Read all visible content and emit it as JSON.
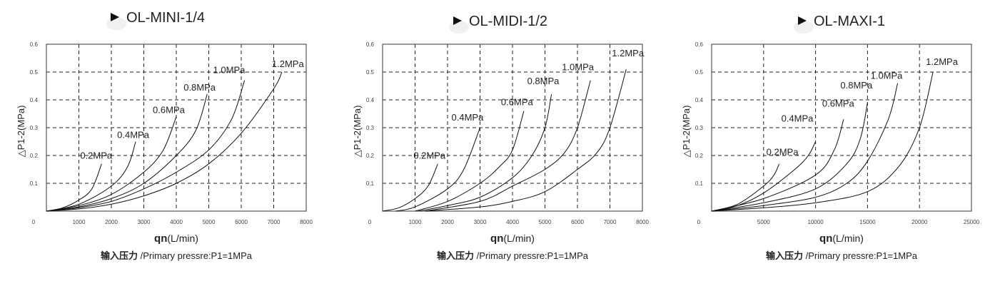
{
  "chart_data": [
    {
      "type": "line",
      "title": "OL-MINI-1/4",
      "xlabel_bold": "qn",
      "xlabel_rest": "(L/min)",
      "ylabel": "△P1-2(MPa)",
      "subtitle_bold": "输入压力",
      "subtitle_rest": " /Primary pressre:P1=1MPa",
      "xlim": [
        0,
        8000
      ],
      "ylim": [
        0,
        0.6
      ],
      "xticks": [
        "0",
        "1000",
        "2000",
        "3000",
        "4000",
        "5000",
        "6000",
        "7000",
        "8000"
      ],
      "yticks": [
        "0.1",
        "0.2",
        "0.3",
        "0.4",
        "0.5",
        "0.6"
      ],
      "grid": true,
      "series": [
        {
          "name": "0.2MPa",
          "points": [
            [
              0,
              0
            ],
            [
              500,
              0.012
            ],
            [
              1000,
              0.04
            ],
            [
              1400,
              0.08
            ],
            [
              1700,
              0.17
            ]
          ]
        },
        {
          "name": "0.4MPa",
          "points": [
            [
              0,
              0
            ],
            [
              1000,
              0.025
            ],
            [
              2000,
              0.09
            ],
            [
              2500,
              0.16
            ],
            [
              2750,
              0.25
            ]
          ]
        },
        {
          "name": "0.6MPa",
          "points": [
            [
              0,
              0
            ],
            [
              1000,
              0.02
            ],
            [
              2000,
              0.06
            ],
            [
              3000,
              0.14
            ],
            [
              3600,
              0.22
            ],
            [
              4000,
              0.34
            ]
          ]
        },
        {
          "name": "0.8MPa",
          "points": [
            [
              0,
              0
            ],
            [
              1000,
              0.015
            ],
            [
              2000,
              0.045
            ],
            [
              3000,
              0.1
            ],
            [
              4000,
              0.2
            ],
            [
              4600,
              0.29
            ],
            [
              4950,
              0.42
            ]
          ]
        },
        {
          "name": "1.0MPa",
          "points": [
            [
              0,
              0
            ],
            [
              1000,
              0.012
            ],
            [
              2000,
              0.035
            ],
            [
              3000,
              0.08
            ],
            [
              4000,
              0.14
            ],
            [
              5000,
              0.22
            ],
            [
              5700,
              0.33
            ],
            [
              6100,
              0.47
            ]
          ]
        },
        {
          "name": "1.2MPa",
          "points": [
            [
              0,
              0
            ],
            [
              1000,
              0.008
            ],
            [
              2000,
              0.025
            ],
            [
              3000,
              0.055
            ],
            [
              4000,
              0.1
            ],
            [
              5000,
              0.17
            ],
            [
              6000,
              0.28
            ],
            [
              7000,
              0.44
            ],
            [
              7250,
              0.5
            ]
          ]
        }
      ]
    },
    {
      "type": "line",
      "title": "OL-MIDI-1/2",
      "xlabel_bold": "qn",
      "xlabel_rest": "(L/min)",
      "ylabel": "△P1-2(MPa)",
      "subtitle_bold": "输入压力",
      "subtitle_rest": " /Primary pressre:P1=1MPa",
      "xlim": [
        0,
        8000
      ],
      "ylim": [
        0,
        0.6
      ],
      "xticks": [
        "0",
        "1000",
        "2000",
        "3000",
        "4000",
        "5000",
        "6000",
        "7000",
        "8000"
      ],
      "yticks": [
        "0.1",
        "0.2",
        "0.3",
        "0.4",
        "0.5",
        "0.6"
      ],
      "grid": true,
      "series": [
        {
          "name": "0.2MPa",
          "points": [
            [
              0,
              0
            ],
            [
              500,
              0.012
            ],
            [
              1000,
              0.045
            ],
            [
              1400,
              0.09
            ],
            [
              1700,
              0.17
            ]
          ]
        },
        {
          "name": "0.4MPa",
          "points": [
            [
              400,
              0
            ],
            [
              1000,
              0.015
            ],
            [
              2000,
              0.08
            ],
            [
              2500,
              0.15
            ],
            [
              3000,
              0.3
            ]
          ]
        },
        {
          "name": "0.6MPa",
          "points": [
            [
              1000,
              0
            ],
            [
              2000,
              0.035
            ],
            [
              3000,
              0.1
            ],
            [
              3600,
              0.16
            ],
            [
              4000,
              0.22
            ],
            [
              4350,
              0.36
            ]
          ]
        },
        {
          "name": "0.8MPa",
          "points": [
            [
              1100,
              0
            ],
            [
              2000,
              0.02
            ],
            [
              3000,
              0.05
            ],
            [
              4000,
              0.12
            ],
            [
              4600,
              0.2
            ],
            [
              5000,
              0.3
            ],
            [
              5200,
              0.42
            ]
          ]
        },
        {
          "name": "1.0MPa",
          "points": [
            [
              1300,
              0
            ],
            [
              3000,
              0.035
            ],
            [
              4000,
              0.09
            ],
            [
              5000,
              0.15
            ],
            [
              5600,
              0.21
            ],
            [
              6000,
              0.3
            ],
            [
              6400,
              0.47
            ]
          ]
        },
        {
          "name": "1.2MPa",
          "points": [
            [
              1300,
              0
            ],
            [
              3000,
              0.015
            ],
            [
              4000,
              0.035
            ],
            [
              5000,
              0.07
            ],
            [
              6000,
              0.15
            ],
            [
              6600,
              0.21
            ],
            [
              7000,
              0.3
            ],
            [
              7500,
              0.51
            ]
          ]
        }
      ]
    },
    {
      "type": "line",
      "title": "OL-MAXI-1",
      "xlabel_bold": "qn",
      "xlabel_rest": "(L/min)",
      "ylabel": "△P1-2(MPa)",
      "subtitle_bold": "输入压力",
      "subtitle_rest": " /Primary pressre:P1=1MPa",
      "xlim": [
        0,
        25000
      ],
      "ylim": [
        0,
        0.6
      ],
      "xticks": [
        "0",
        "5000",
        "10000",
        "15000",
        "20000",
        "25000"
      ],
      "yticks": [
        "0.1",
        "0.2",
        "0.3",
        "0.4",
        "0.5",
        "0.6"
      ],
      "grid": true,
      "series": [
        {
          "name": "0.2MPa",
          "points": [
            [
              0,
              0
            ],
            [
              2500,
              0.025
            ],
            [
              5000,
              0.09
            ],
            [
              6000,
              0.13
            ],
            [
              6500,
              0.17
            ]
          ]
        },
        {
          "name": "0.4MPa",
          "points": [
            [
              0,
              0
            ],
            [
              2500,
              0.02
            ],
            [
              5000,
              0.065
            ],
            [
              8000,
              0.15
            ],
            [
              9300,
              0.2
            ],
            [
              10000,
              0.25
            ]
          ]
        },
        {
          "name": "0.6MPa",
          "points": [
            [
              0,
              0
            ],
            [
              5000,
              0.045
            ],
            [
              10000,
              0.13
            ],
            [
              11800,
              0.22
            ],
            [
              12700,
              0.33
            ]
          ]
        },
        {
          "name": "0.8MPa",
          "points": [
            [
              0,
              0
            ],
            [
              5000,
              0.03
            ],
            [
              10000,
              0.08
            ],
            [
              13000,
              0.17
            ],
            [
              14300,
              0.26
            ],
            [
              15000,
              0.39
            ]
          ]
        },
        {
          "name": "1.0MPa",
          "points": [
            [
              0,
              0
            ],
            [
              5000,
              0.02
            ],
            [
              10000,
              0.05
            ],
            [
              13000,
              0.1
            ],
            [
              15000,
              0.18
            ],
            [
              17000,
              0.33
            ],
            [
              17900,
              0.46
            ]
          ]
        },
        {
          "name": "1.2MPa",
          "points": [
            [
              0,
              0
            ],
            [
              5000,
              0.012
            ],
            [
              10000,
              0.03
            ],
            [
              15000,
              0.07
            ],
            [
              18000,
              0.16
            ],
            [
              20000,
              0.3
            ],
            [
              21300,
              0.5
            ]
          ]
        }
      ]
    }
  ]
}
